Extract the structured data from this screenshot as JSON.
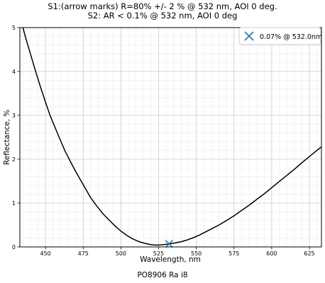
{
  "chart_data": {
    "type": "line",
    "title": [
      "S1:(arrow marks) R=80% +/- 2 % @ 532 nm, AOI 0 deg.",
      "S2: AR < 0.1% @ 532 nm, AOI 0 deg"
    ],
    "xlabel": "Wavelength, nm",
    "ylabel": "Reflectance, %",
    "xlim": [
      433,
      633
    ],
    "ylim": [
      0,
      5
    ],
    "x_ticks": [
      450,
      475,
      500,
      525,
      550,
      575,
      600,
      625
    ],
    "y_ticks": [
      0,
      1,
      2,
      3,
      4,
      5
    ],
    "grid": true,
    "minor_grid": true,
    "legend_position": "top-right",
    "series": [
      {
        "name": "",
        "color": "#000000",
        "x": [
          435,
          437,
          440,
          443,
          446,
          450,
          453,
          456,
          460,
          463,
          466,
          470,
          474,
          477,
          480,
          484,
          488,
          492,
          496,
          500,
          504,
          508,
          512,
          516,
          520,
          524,
          528,
          532,
          536,
          540,
          544,
          548,
          552,
          556,
          560,
          565,
          570,
          575,
          580,
          585,
          590,
          595,
          600,
          605,
          610,
          615,
          620,
          625,
          630,
          633
        ],
        "y": [
          5.0,
          4.75,
          4.4,
          4.05,
          3.72,
          3.3,
          3.0,
          2.75,
          2.42,
          2.18,
          1.98,
          1.72,
          1.48,
          1.3,
          1.12,
          0.93,
          0.76,
          0.62,
          0.48,
          0.36,
          0.26,
          0.18,
          0.12,
          0.08,
          0.05,
          0.04,
          0.05,
          0.07,
          0.09,
          0.12,
          0.16,
          0.21,
          0.27,
          0.34,
          0.41,
          0.5,
          0.6,
          0.71,
          0.83,
          0.95,
          1.08,
          1.21,
          1.35,
          1.49,
          1.63,
          1.77,
          1.92,
          2.06,
          2.2,
          2.28
        ]
      }
    ],
    "markers": [
      {
        "label": "0.07% @ 532.0nm",
        "x": 532,
        "y": 0.07,
        "symbol": "x",
        "color": "#1f77b4"
      }
    ]
  },
  "footer": "PO8906 Ra i8"
}
